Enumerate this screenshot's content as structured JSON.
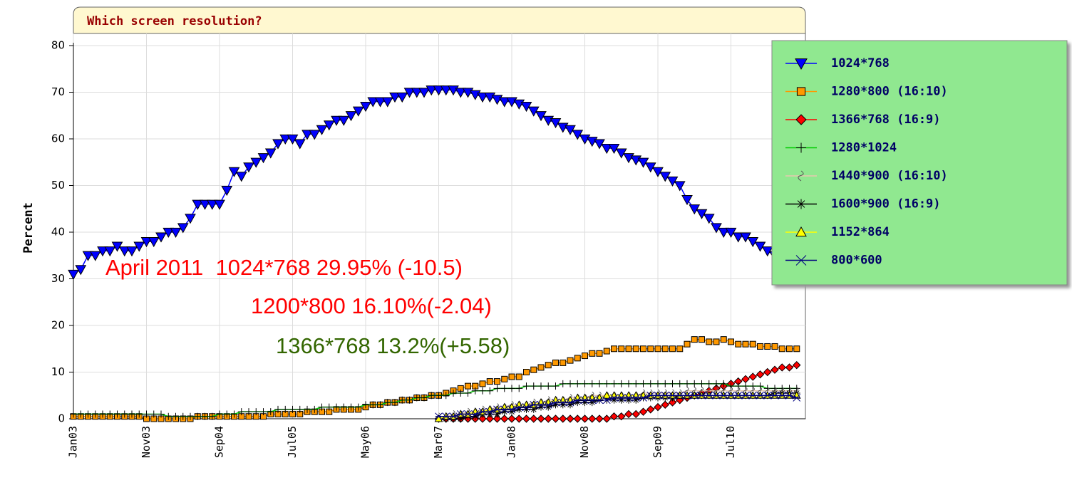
{
  "chart_data": {
    "type": "line",
    "title": "Which screen resolution?",
    "y_label": "Percent",
    "categories": [
      "Jan03",
      null,
      null,
      null,
      null,
      null,
      null,
      null,
      null,
      null,
      "Nov03",
      null,
      null,
      null,
      null,
      null,
      null,
      null,
      null,
      null,
      "Sep04",
      null,
      null,
      null,
      null,
      null,
      null,
      null,
      null,
      null,
      "Jul05",
      null,
      null,
      null,
      null,
      null,
      null,
      null,
      null,
      null,
      "May06",
      null,
      null,
      null,
      null,
      null,
      null,
      null,
      null,
      null,
      "Mar07",
      null,
      null,
      null,
      null,
      null,
      null,
      null,
      null,
      null,
      "Jan08",
      null,
      null,
      null,
      null,
      null,
      null,
      null,
      null,
      null,
      "Nov08",
      null,
      null,
      null,
      null,
      null,
      null,
      null,
      null,
      null,
      "Sep09",
      null,
      null,
      null,
      null,
      null,
      null,
      null,
      null,
      null,
      "Jul10",
      null,
      null,
      null,
      null,
      null,
      null,
      null,
      null,
      null
    ],
    "ylim": [
      0,
      80
    ],
    "yticks": [
      0,
      10,
      20,
      30,
      40,
      50,
      60,
      70,
      80
    ],
    "grid": true,
    "series": [
      {
        "name": "1024*768",
        "color": "#0000ff",
        "marker": "triangle-down",
        "values": [
          31,
          32,
          35,
          35,
          36,
          36,
          37,
          36,
          36,
          37,
          38,
          38,
          39,
          40,
          40,
          41,
          43,
          46,
          46,
          46,
          46,
          49,
          53,
          52,
          54,
          55,
          56,
          57,
          59,
          60,
          60,
          59,
          61,
          61,
          62,
          63,
          64,
          64,
          65,
          66,
          67,
          68,
          68,
          68,
          69,
          69,
          70,
          70,
          70,
          70.5,
          70.5,
          70.5,
          70.5,
          70,
          70,
          69.5,
          69,
          69,
          68.5,
          68,
          68,
          67.5,
          67,
          66,
          65,
          64,
          63.5,
          62.5,
          62,
          61,
          60,
          59.5,
          59,
          58,
          58,
          57,
          56,
          55.5,
          55,
          54,
          53,
          52,
          51,
          50,
          47,
          45,
          44,
          43,
          41,
          40,
          40,
          39,
          39,
          38,
          37,
          36,
          35,
          34,
          32,
          30
        ]
      },
      {
        "name": "1280*800 (16:10)",
        "color": "#ff9900",
        "marker": "square",
        "values": [
          0.5,
          0.5,
          0.5,
          0.5,
          0.5,
          0.5,
          0.5,
          0.5,
          0.5,
          0.5,
          0,
          0,
          0,
          0,
          0,
          0,
          0,
          0.5,
          0.5,
          0.5,
          0.5,
          0.5,
          0.5,
          0.5,
          0.5,
          0.5,
          0.5,
          1,
          1,
          1,
          1,
          1,
          1.5,
          1.5,
          1.5,
          1.5,
          2,
          2,
          2,
          2,
          2.5,
          3,
          3,
          3.5,
          3.5,
          4,
          4,
          4.5,
          4.5,
          5,
          5,
          5.5,
          6,
          6.5,
          7,
          7,
          7.5,
          8,
          8,
          8.5,
          9,
          9,
          10,
          10.5,
          11,
          11.5,
          12,
          12,
          12.5,
          13,
          13.5,
          14,
          14,
          14.5,
          15,
          15,
          15,
          15,
          15,
          15,
          15,
          15,
          15,
          15,
          16,
          17,
          17,
          16.5,
          16.5,
          17,
          16.5,
          16,
          16,
          16,
          15.5,
          15.5,
          15.5,
          15,
          15,
          15
        ]
      },
      {
        "name": "1366*768 (16:9)",
        "color": "#ff0000",
        "marker": "diamond",
        "values": [
          null,
          null,
          null,
          null,
          null,
          null,
          null,
          null,
          null,
          null,
          null,
          null,
          null,
          null,
          null,
          null,
          null,
          null,
          null,
          null,
          null,
          null,
          null,
          null,
          null,
          null,
          null,
          null,
          null,
          null,
          null,
          null,
          null,
          null,
          null,
          null,
          null,
          null,
          null,
          null,
          null,
          null,
          null,
          null,
          null,
          null,
          null,
          null,
          null,
          null,
          0,
          0,
          0,
          0,
          0,
          0,
          0,
          0,
          0,
          0,
          0,
          0,
          0,
          0,
          0,
          0,
          0,
          0,
          0,
          0,
          0,
          0,
          0,
          0,
          0.5,
          0.5,
          1,
          1,
          1.5,
          2,
          2.5,
          3,
          3.5,
          4,
          4.5,
          5,
          5.5,
          6,
          6.5,
          7,
          7.5,
          8,
          8.5,
          9,
          9.5,
          10,
          10.5,
          11,
          11,
          11.5
        ]
      },
      {
        "name": "1280*1024",
        "color": "#00cc00",
        "marker": "plus",
        "values": [
          1,
          1,
          1,
          1,
          1,
          1,
          1,
          1,
          1,
          1,
          1,
          1,
          1,
          0.5,
          0.5,
          0.5,
          0.5,
          0.5,
          0.5,
          0.5,
          1,
          1,
          1,
          1.5,
          1.5,
          1.5,
          1.5,
          1.5,
          2,
          2,
          2,
          2,
          2,
          2,
          2.5,
          2.5,
          2.5,
          2.5,
          2.5,
          2.5,
          3,
          3,
          3,
          3.5,
          3.5,
          4,
          4,
          4.5,
          4.5,
          5,
          5,
          5,
          5.5,
          5.5,
          5.5,
          6,
          6,
          6,
          6.5,
          6.5,
          6.5,
          6.5,
          7,
          7,
          7,
          7,
          7,
          7.5,
          7.5,
          7.5,
          7.5,
          7.5,
          7.5,
          7.5,
          7.5,
          7.5,
          7.5,
          7.5,
          7.5,
          7.5,
          7.5,
          7.5,
          7.5,
          7.5,
          7.5,
          7.5,
          7.5,
          7.5,
          7.5,
          7.5,
          7,
          7,
          7,
          7,
          7,
          6.5,
          6.5,
          6.5,
          6.5,
          6.5
        ]
      },
      {
        "name": "1440*900 (16:10)",
        "color": "#e8c8b0",
        "marker": "squiggle",
        "values": [
          null,
          null,
          null,
          null,
          null,
          null,
          null,
          null,
          null,
          null,
          null,
          null,
          null,
          null,
          null,
          null,
          null,
          null,
          null,
          null,
          null,
          null,
          null,
          null,
          null,
          null,
          null,
          null,
          null,
          null,
          null,
          null,
          null,
          null,
          null,
          null,
          null,
          null,
          null,
          null,
          null,
          null,
          null,
          null,
          null,
          null,
          null,
          null,
          null,
          null,
          0.5,
          0.5,
          1,
          1,
          1.5,
          1.5,
          2,
          2,
          2.5,
          2.5,
          3,
          3,
          3,
          3.5,
          3.5,
          4,
          4,
          4,
          4.5,
          4.5,
          4.5,
          5,
          5,
          5,
          5,
          5,
          5,
          5,
          5.5,
          5.5,
          5.5,
          5.5,
          5.5,
          5.5,
          6,
          6,
          6,
          6,
          6,
          6,
          6,
          6,
          6,
          6,
          6,
          6,
          6,
          6,
          6,
          6
        ]
      },
      {
        "name": "1600*900 (16:9)",
        "color": "#000000",
        "marker": "asterisk",
        "values": [
          null,
          null,
          null,
          null,
          null,
          null,
          null,
          null,
          null,
          null,
          null,
          null,
          null,
          null,
          null,
          null,
          null,
          null,
          null,
          null,
          null,
          null,
          null,
          null,
          null,
          null,
          null,
          null,
          null,
          null,
          null,
          null,
          null,
          null,
          null,
          null,
          null,
          null,
          null,
          null,
          null,
          null,
          null,
          null,
          null,
          null,
          null,
          null,
          null,
          null,
          0,
          0,
          0,
          0,
          0.5,
          0.5,
          1,
          1,
          1,
          1.5,
          1.5,
          2,
          2,
          2,
          2.5,
          2.5,
          3,
          3,
          3,
          3.5,
          3.5,
          3.5,
          4,
          4,
          4,
          4,
          4,
          4,
          4.5,
          4.5,
          4.5,
          4.5,
          4.5,
          5,
          5,
          5,
          5,
          5,
          5,
          5,
          5,
          5,
          5,
          5,
          5,
          5,
          5.5,
          5.5,
          5.5,
          5.5
        ]
      },
      {
        "name": "1152*864",
        "color": "#ffff00",
        "marker": "triangle-up",
        "values": [
          null,
          null,
          null,
          null,
          null,
          null,
          null,
          null,
          null,
          null,
          null,
          null,
          null,
          null,
          null,
          null,
          null,
          null,
          null,
          null,
          null,
          null,
          null,
          null,
          null,
          null,
          null,
          null,
          null,
          null,
          null,
          null,
          null,
          null,
          null,
          null,
          null,
          null,
          null,
          null,
          null,
          null,
          null,
          null,
          null,
          null,
          null,
          null,
          null,
          null,
          0,
          0.5,
          0.5,
          1,
          1,
          1.5,
          1.5,
          2,
          2,
          2.5,
          2.5,
          3,
          3,
          3,
          3.5,
          3.5,
          4,
          4,
          4,
          4.5,
          4.5,
          4.5,
          4.5,
          5,
          5,
          5,
          5,
          5,
          5,
          5,
          5,
          5,
          5,
          5,
          5,
          5,
          5,
          5,
          5,
          5,
          5,
          5,
          5,
          5,
          5,
          5,
          5,
          5,
          5,
          5
        ]
      },
      {
        "name": "800*600",
        "color": "#000080",
        "marker": "x",
        "values": [
          null,
          null,
          null,
          null,
          null,
          null,
          null,
          null,
          null,
          null,
          null,
          null,
          null,
          null,
          null,
          null,
          null,
          null,
          null,
          null,
          null,
          null,
          null,
          null,
          null,
          null,
          null,
          null,
          null,
          null,
          null,
          null,
          null,
          null,
          null,
          null,
          null,
          null,
          null,
          null,
          null,
          null,
          null,
          null,
          null,
          null,
          null,
          null,
          null,
          null,
          0.5,
          0.5,
          0.5,
          1,
          1,
          1,
          1.5,
          1.5,
          2,
          2,
          2,
          2.5,
          2.5,
          3,
          3,
          3,
          3.5,
          3.5,
          3.5,
          4,
          4,
          4,
          4,
          4,
          4.5,
          4.5,
          4.5,
          4.5,
          4.5,
          5,
          5,
          5,
          5,
          5,
          5,
          5,
          5,
          5,
          5,
          5,
          5,
          5,
          5,
          5,
          5,
          5,
          5,
          5,
          5,
          4.5
        ]
      }
    ],
    "annotations": [
      {
        "text": "April 2011  1024*768 29.95% (-10.5)",
        "color": "#ff0000"
      },
      {
        "text": "1200*800 16.10%(-2.04)",
        "color": "#ff0000"
      },
      {
        "text": "1366*768 13.2%(+5.58)",
        "color": "#336600"
      }
    ]
  }
}
